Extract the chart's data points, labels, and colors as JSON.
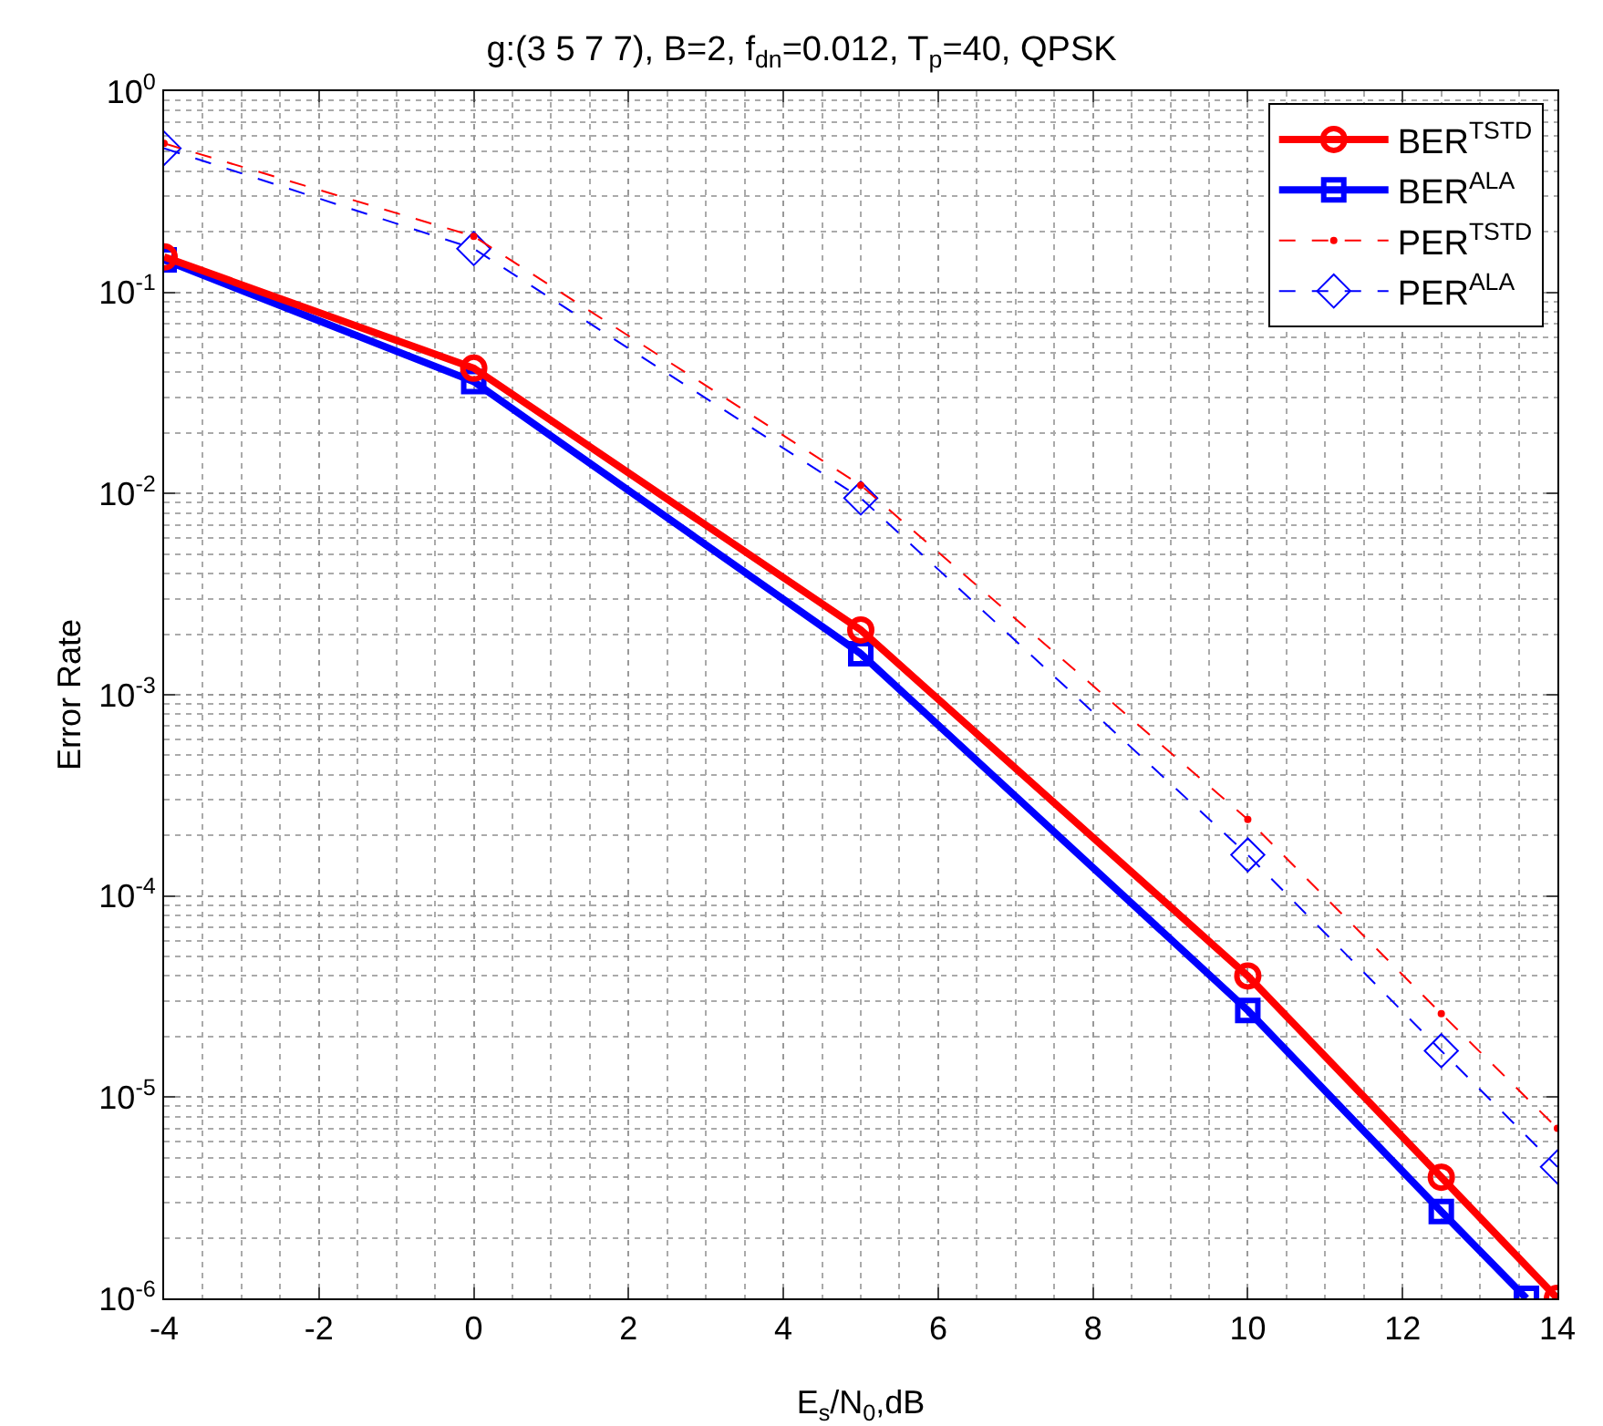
{
  "chart_data": {
    "type": "line",
    "title": "g:(3 5 7 7), B=2, f$_{dn}$=0.012, T$_{p}$=40, QPSK",
    "xlabel": "E$_{s}$/N$_{0}$,dB",
    "ylabel": "Error Rate",
    "xlim": [
      -4,
      14
    ],
    "xticks": [
      -4,
      -2,
      0,
      2,
      4,
      6,
      8,
      10,
      12,
      14
    ],
    "ylim": [
      1e-06,
      1
    ],
    "yticks": [
      {
        "value": 1e-06,
        "label": "10$^{-6}$"
      },
      {
        "value": 1e-05,
        "label": "10$^{-5}$"
      },
      {
        "value": 0.0001,
        "label": "10$^{-4}$"
      },
      {
        "value": 0.001,
        "label": "10$^{-3}$"
      },
      {
        "value": 0.01,
        "label": "10$^{-2}$"
      },
      {
        "value": 0.1,
        "label": "10$^{-1}$"
      },
      {
        "value": 1,
        "label": "10$^{0}$"
      }
    ],
    "log": "y",
    "grid": true,
    "legend": "top right",
    "series": [
      {
        "name": "BER$^{TSTD}$",
        "color": "#ff0000",
        "marker": "circle",
        "line_style": "solid",
        "x": [
          -4,
          0,
          5,
          10,
          12.5,
          14
        ],
        "values": [
          0.15,
          0.042,
          0.0021,
          4e-05,
          4e-06,
          1e-06
        ]
      },
      {
        "name": "BER$^{ALA}$",
        "color": "#0000ff",
        "marker": "square",
        "line_style": "solid",
        "x": [
          -4,
          0,
          5,
          10,
          12.5,
          13.6
        ],
        "values": [
          0.145,
          0.036,
          0.0016,
          2.7e-05,
          2.7e-06,
          1e-06
        ]
      },
      {
        "name": "PER$^{TSTD}$",
        "color": "#ff0000",
        "marker": "circle-small",
        "line_style": "dashed",
        "x": [
          -4,
          0,
          5,
          10,
          12.5,
          14
        ],
        "values": [
          0.55,
          0.19,
          0.011,
          0.00024,
          2.6e-05,
          7e-06
        ]
      },
      {
        "name": "PER$^{ALA}$",
        "color": "#0000ff",
        "marker": "diamond",
        "line_style": "dashed",
        "x": [
          -4,
          0,
          5,
          10,
          12.5,
          14
        ],
        "values": [
          0.52,
          0.165,
          0.0095,
          0.00016,
          1.7e-05,
          4.5e-06
        ]
      }
    ]
  }
}
